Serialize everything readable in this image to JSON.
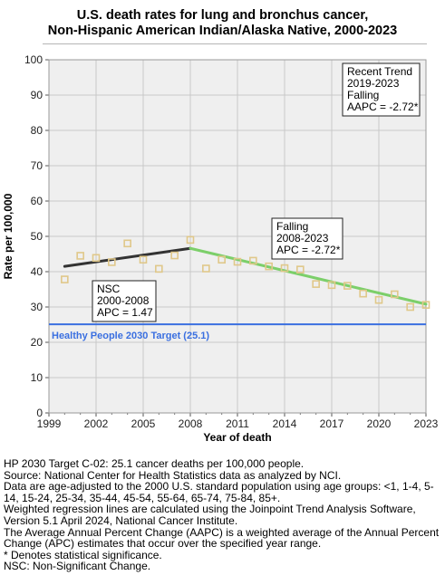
{
  "title": {
    "line1": "U.S. death rates for lung and bronchus cancer,",
    "line2": "Non-Hispanic American Indian/Alaska Native,  2000-2023"
  },
  "chart_data": {
    "type": "scatter",
    "xlabel": "Year of death",
    "ylabel": "Rate per 100,000",
    "xlim": [
      1999,
      2023
    ],
    "ylim": [
      0,
      100
    ],
    "x_ticks": [
      "1999",
      "2002",
      "2005",
      "2008",
      "2011",
      "2014",
      "2017",
      "2020",
      "2023"
    ],
    "y_ticks": [
      "0",
      "10",
      "20",
      "30",
      "40",
      "50",
      "60",
      "70",
      "80",
      "90",
      "100"
    ],
    "grid": true,
    "observed": {
      "x": [
        2000,
        2001,
        2002,
        2003,
        2004,
        2005,
        2006,
        2007,
        2008,
        2009,
        2010,
        2011,
        2012,
        2013,
        2014,
        2015,
        2016,
        2017,
        2018,
        2019,
        2020,
        2021,
        2022,
        2023
      ],
      "y": [
        37.8,
        44.5,
        43.9,
        42.7,
        48.0,
        43.4,
        40.8,
        44.6,
        49.0,
        40.9,
        43.4,
        42.8,
        43.1,
        41.5,
        41.0,
        40.6,
        36.5,
        36.2,
        36.0,
        33.8,
        32.0,
        33.6,
        30.0,
        30.6
      ],
      "marker_color": "#e0c88a"
    },
    "trends": [
      {
        "x": [
          2000,
          2008
        ],
        "y": [
          41.5,
          46.6
        ],
        "color": "#333333"
      },
      {
        "x": [
          2008,
          2023
        ],
        "y": [
          46.6,
          30.8
        ],
        "color": "#7ccf6a"
      }
    ],
    "target": {
      "value": 25.1,
      "label": "Healthy People 2030 Target (25.1)",
      "color": "#3a6fe0"
    },
    "annotations": [
      {
        "lines": [
          "NSC",
          "2000-2008",
          "APC =  1.47"
        ]
      },
      {
        "lines": [
          "Falling",
          "2008-2023",
          "APC = -2.72*"
        ]
      },
      {
        "lines": [
          "Recent Trend",
          "2019-2023",
          "Falling",
          "AAPC = -2.72*"
        ]
      }
    ]
  },
  "footnotes": [
    "HP 2030 Target C-02: 25.1 cancer deaths per 100,000 people.",
    "Source: National Center for Health Statistics data as analyzed by NCI.",
    "Data are age-adjusted to the 2000 U.S. standard population using age groups: <1, 1-4, 5-14, 15-24, 25-34, 35-44, 45-54, 55-64, 65-74, 75-84, 85+.",
    "Weighted regression lines are calculated using the Joinpoint Trend Analysis Software, Version 5.1 April 2024, National Cancer Institute.",
    "The Average Annual Percent Change (AAPC) is a weighted average of the Annual Percent Change (APC) estimates that occur over the specified year range.",
    "* Denotes statistical significance.",
    "NSC: Non-Significant Change."
  ]
}
